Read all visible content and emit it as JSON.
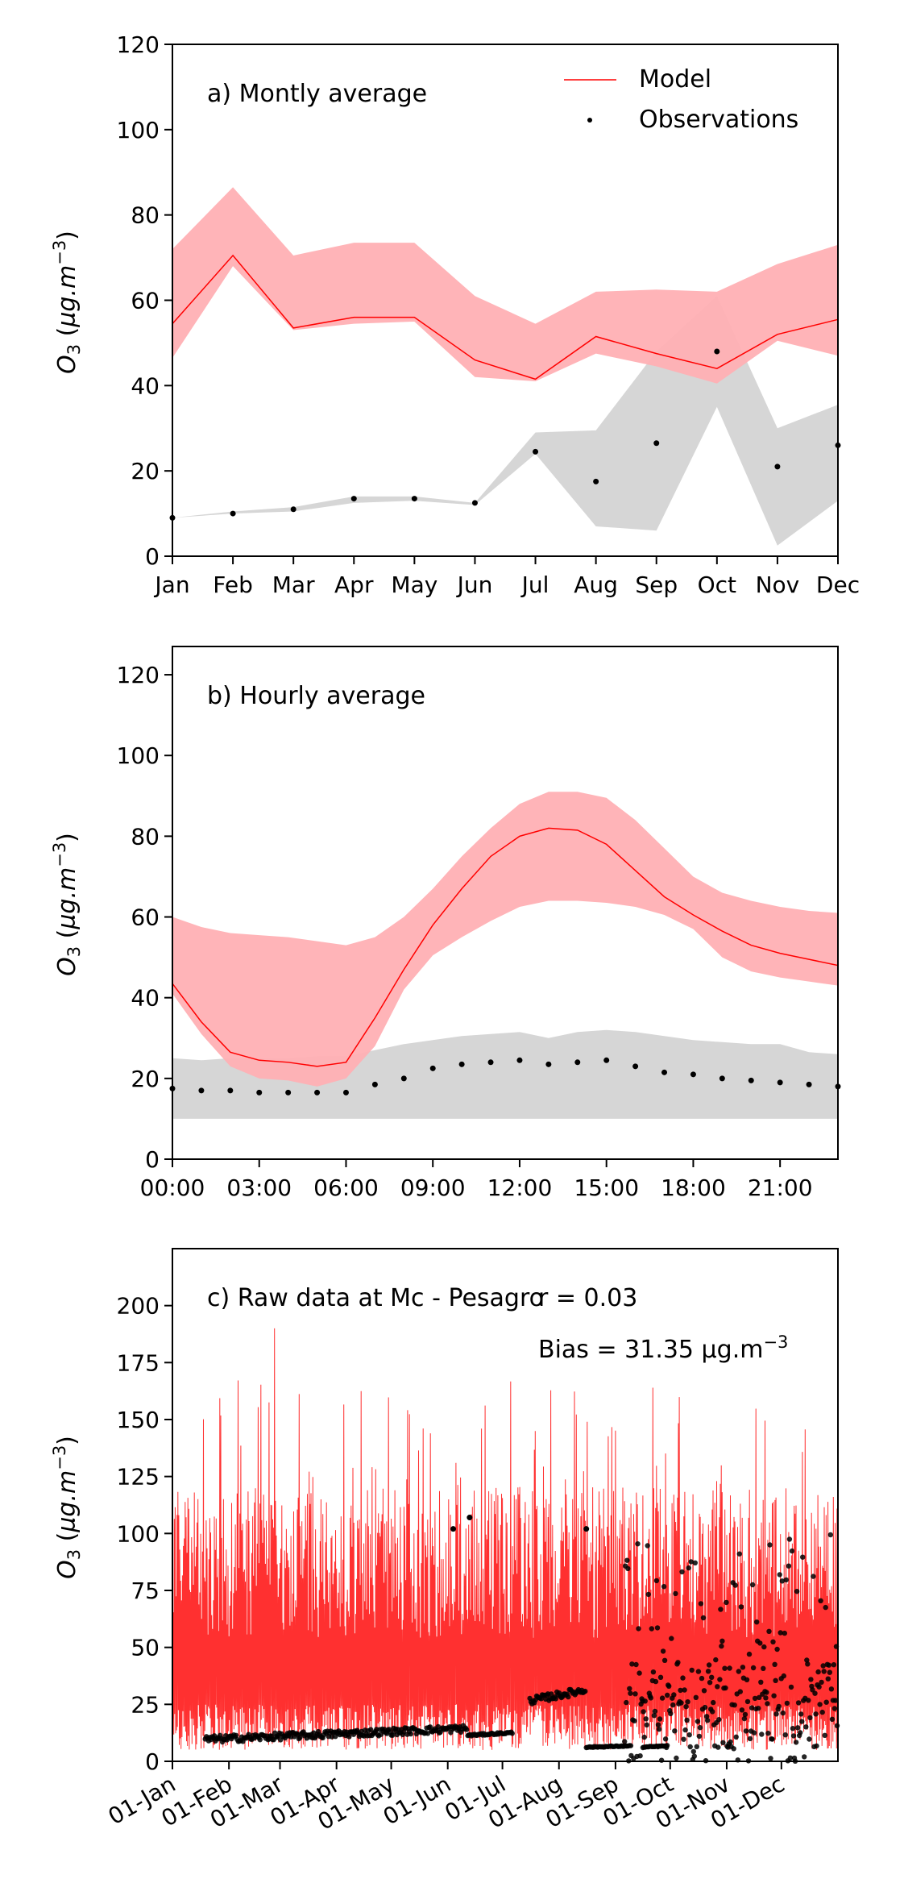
{
  "chart_data": [
    {
      "type": "line",
      "panel_label": "a) Montly average",
      "categories": [
        "Jan",
        "Feb",
        "Mar",
        "Apr",
        "May",
        "Jun",
        "Jul",
        "Aug",
        "Sep",
        "Oct",
        "Nov",
        "Dec"
      ],
      "ylabel": "O3 (µg.m-3)",
      "ylim": [
        0,
        120
      ],
      "yticks": [
        0,
        20,
        40,
        60,
        80,
        100,
        120
      ],
      "legend": {
        "position": "top-right",
        "entries": [
          "Model",
          "Observations"
        ]
      },
      "colors": {
        "model": "#ff0000",
        "model_band": "#ffb0b4",
        "obs": "#000000",
        "obs_band": "#d6d6d6"
      },
      "series": [
        {
          "name": "Model",
          "style": "line",
          "values": [
            54.5,
            70.5,
            53.5,
            56,
            56,
            46,
            41.5,
            51.5,
            47.5,
            44,
            52,
            55.5
          ]
        },
        {
          "name": "Observations",
          "style": "points",
          "values": [
            9,
            10,
            11,
            13.5,
            13.5,
            12.5,
            24.5,
            17.5,
            26.5,
            48,
            21,
            26
          ]
        }
      ],
      "bands": {
        "model_upper": [
          72,
          86.5,
          70.5,
          73.5,
          73.5,
          61,
          54.5,
          62,
          62.5,
          62,
          68.5,
          73
        ],
        "model_lower": [
          46.5,
          68,
          53,
          54.5,
          55,
          42,
          41,
          47.5,
          44.5,
          40.5,
          50.5,
          47
        ],
        "obs_upper": [
          9,
          10.5,
          11.5,
          14,
          14,
          12.5,
          29,
          29.5,
          48,
          61,
          30,
          35.5
        ],
        "obs_lower": [
          9,
          10,
          10.5,
          12.5,
          13,
          12,
          24,
          7,
          6,
          35,
          2.5,
          13
        ]
      }
    },
    {
      "type": "line",
      "panel_label": "b) Hourly average",
      "x": [
        0,
        1,
        2,
        3,
        4,
        5,
        6,
        7,
        8,
        9,
        10,
        11,
        12,
        13,
        14,
        15,
        16,
        17,
        18,
        19,
        20,
        21,
        22,
        23
      ],
      "xticks": [
        "00:00",
        "03:00",
        "06:00",
        "09:00",
        "12:00",
        "15:00",
        "18:00",
        "21:00"
      ],
      "ylabel": "O3 (µg.m-3)",
      "ylim": [
        0,
        127
      ],
      "yticks": [
        0,
        20,
        40,
        60,
        80,
        100,
        120
      ],
      "series": [
        {
          "name": "Model",
          "style": "line",
          "values": [
            43.5,
            34,
            26.5,
            24.5,
            24,
            23,
            24,
            35,
            47,
            58,
            67,
            75,
            80,
            82,
            81.5,
            78,
            71.5,
            65,
            60.5,
            56.5,
            53,
            51,
            49.5,
            48
          ]
        },
        {
          "name": "Observations",
          "style": "points",
          "values": [
            17.5,
            17,
            17,
            16.5,
            16.5,
            16.5,
            16.5,
            18.5,
            20,
            22.5,
            23.5,
            24,
            24.5,
            23.5,
            24,
            24.5,
            23,
            21.5,
            21,
            20,
            19.5,
            19,
            18.5,
            18
          ]
        }
      ],
      "bands": {
        "model_upper": [
          60,
          57.5,
          56,
          55.5,
          55,
          54,
          53,
          55,
          60,
          67,
          75,
          82,
          88,
          91,
          91,
          89.5,
          84,
          77,
          70,
          66,
          64,
          62.5,
          61.5,
          61
        ],
        "model_lower": [
          41,
          31,
          23,
          20,
          19.5,
          18,
          20,
          28,
          42,
          50.5,
          55,
          59,
          62.5,
          64,
          64,
          63.5,
          62.5,
          60.5,
          57,
          50,
          46.5,
          45,
          44,
          43
        ],
        "obs_upper": [
          25,
          24.5,
          25,
          25,
          25,
          25.5,
          25.5,
          27,
          28.5,
          29.5,
          30.5,
          31,
          31.5,
          30,
          31.5,
          32,
          31.5,
          30.5,
          29.5,
          29,
          28.5,
          28.5,
          26.5,
          26
        ],
        "obs_lower": [
          10,
          10,
          10,
          10,
          10,
          10,
          10,
          10,
          10,
          10,
          10,
          10,
          10,
          10,
          10,
          10,
          10,
          10,
          10,
          10,
          10,
          10,
          10,
          10
        ]
      }
    },
    {
      "type": "line",
      "panel_label": "c) Raw data at Mc - Pesagro",
      "annotations": [
        "r = 0.03",
        "Bias = 31.35 µg.m-3"
      ],
      "xticks": [
        "01-Jan",
        "01-Feb",
        "01-Mar",
        "01-Apr",
        "01-May",
        "01-Jun",
        "01-Jul",
        "01-Aug",
        "01-Sep",
        "01-Oct",
        "01-Nov",
        "01-Dec"
      ],
      "xtick_days": [
        0,
        31,
        59,
        90,
        120,
        151,
        181,
        212,
        243,
        273,
        304,
        334
      ],
      "xlim_days": [
        0,
        365
      ],
      "ylabel": "O3 (µg.m-3)",
      "ylim": [
        0,
        225
      ],
      "yticks": [
        0,
        25,
        50,
        75,
        100,
        125,
        150,
        175,
        200
      ],
      "model_hourly_range": {
        "typical": [
          5,
          120
        ],
        "peak_max": 190,
        "peak_day": 56
      },
      "observation_segments": [
        {
          "day_range": [
            18,
            162
          ],
          "value_range": [
            8,
            16
          ]
        },
        {
          "day_range": [
            162,
            187
          ],
          "value_range": [
            11,
            13
          ]
        },
        {
          "day_range": [
            196,
            227
          ],
          "value_range": [
            25,
            33
          ]
        },
        {
          "day_range": [
            227,
            252
          ],
          "value_range": [
            6,
            7
          ]
        },
        {
          "day_range": [
            258,
            272
          ],
          "value_range": [
            6,
            7
          ]
        },
        {
          "day_range": [
            248,
            365
          ],
          "value_range": [
            0,
            100
          ]
        }
      ],
      "observation_outliers": [
        [
          154,
          102
        ],
        [
          163,
          107
        ],
        [
          227,
          102
        ]
      ]
    }
  ],
  "legend_labels": {
    "model": "Model",
    "observations": "Observations"
  },
  "labels": {
    "panel_a": "a) Montly average",
    "panel_b": "b) Hourly average",
    "panel_c": "c) Raw data at Mc - Pesagro",
    "r_text": "r = 0.03",
    "bias_text": "Bias = 31.35 µg.m",
    "bias_sup": "−3",
    "ylabel_main": "O",
    "ylabel_sub": "3",
    "ylabel_units": " (µg.m",
    "ylabel_sup": "−3",
    "ylabel_close": ")"
  }
}
